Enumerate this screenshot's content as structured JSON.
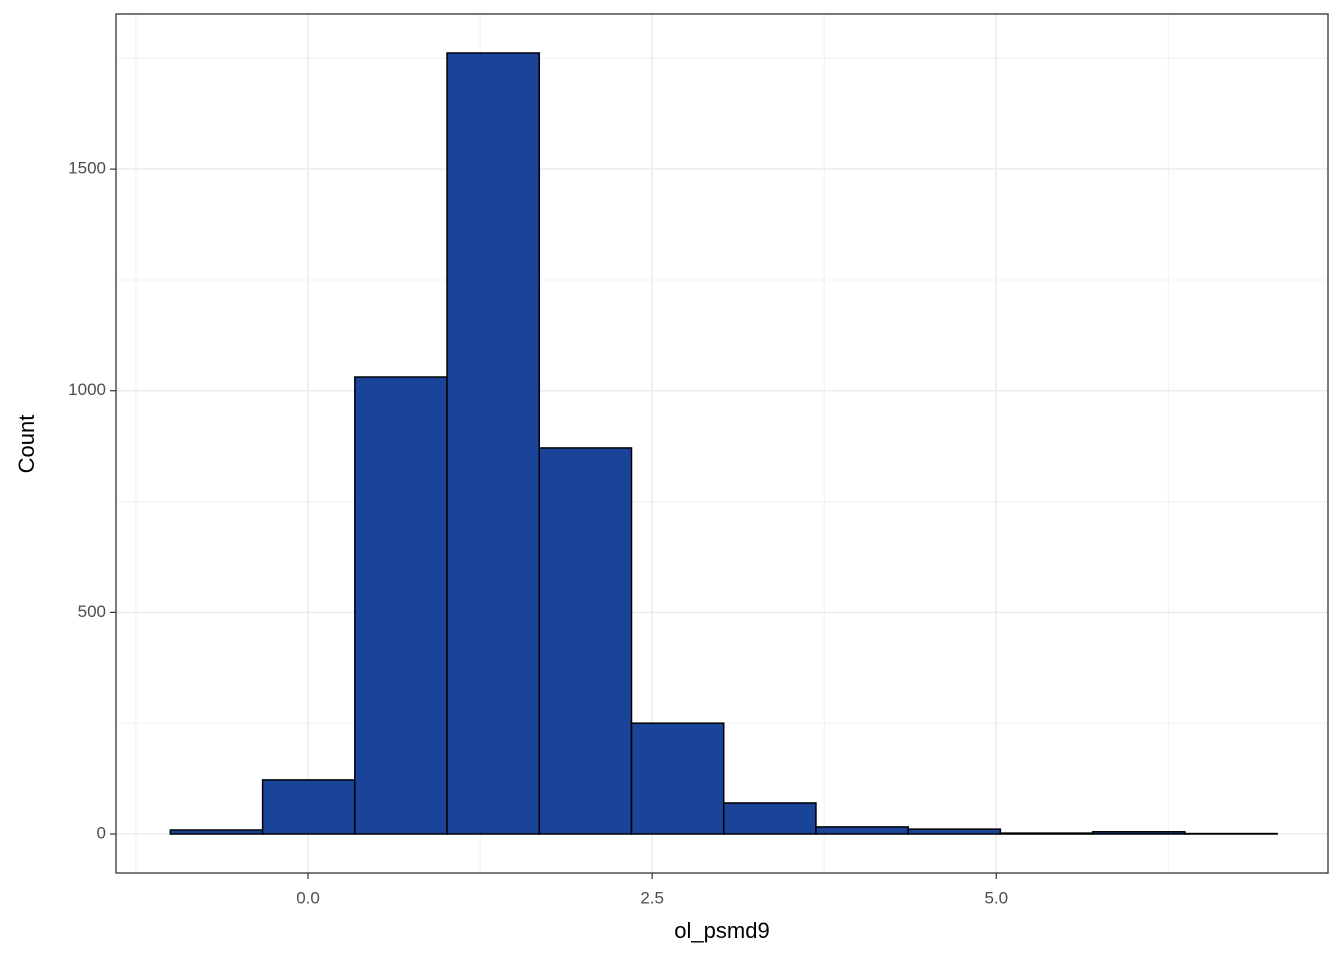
{
  "chart_data": {
    "type": "histogram",
    "x_label": "ol_psmd9",
    "y_label": "Count",
    "bins": [
      -1.0,
      -0.33,
      0.34,
      1.01,
      1.68,
      2.35,
      3.02,
      3.69,
      4.36,
      5.03,
      5.7,
      6.37,
      7.04
    ],
    "values": [
      9,
      122,
      1031,
      1762,
      871,
      250,
      70,
      16,
      11,
      2,
      5,
      1
    ],
    "color": "#1a449a",
    "edgecolor": "#000000",
    "xlim": [
      -1.395,
      7.41
    ],
    "ylim": [
      -88,
      1850
    ],
    "xticks": [
      {
        "value": 0,
        "label": "0.0"
      },
      {
        "value": 2.5,
        "label": "2.5"
      },
      {
        "value": 5,
        "label": "5.0"
      }
    ],
    "yticks": [
      0,
      500,
      1000,
      1500
    ],
    "grid": true
  }
}
